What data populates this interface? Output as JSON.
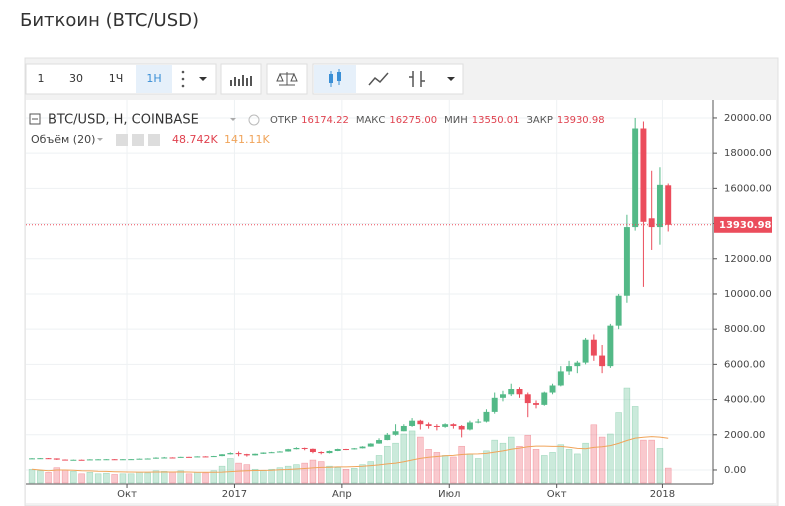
{
  "page_title": "Биткоин (BTC/USD)",
  "toolbar": {
    "buttons": [
      "1",
      "30",
      "1Ч",
      "1Н"
    ]
  },
  "chart_data": {
    "type": "candlestick",
    "title": "BTC/USD, H, COINBASE",
    "ohlc_names": [
      "ОТКР",
      "МАКС",
      "МИН",
      "ЗАКР"
    ],
    "ohlc_labels": [
      "16174.22",
      "16275.00",
      "13550.01",
      "13930.98"
    ],
    "up_color": "#53b987",
    "down_color": "#eb4d5c",
    "xlim": [
      -0.73,
      82.3
    ],
    "xticks": [
      {
        "value": 11.5,
        "label": "Окт"
      },
      {
        "value": 24.5,
        "label": "2017"
      },
      {
        "value": 37.5,
        "label": "Апр"
      },
      {
        "value": 50.5,
        "label": "Июл"
      },
      {
        "value": 63.5,
        "label": "Окт"
      },
      {
        "value": 76.3,
        "label": "2018"
      }
    ],
    "ylim": [
      -740,
      21020
    ],
    "yticks": [
      {
        "value": 0,
        "label": "0.00"
      },
      {
        "value": 2000,
        "label": "2000.00"
      },
      {
        "value": 4000,
        "label": "4000.00"
      },
      {
        "value": 6000,
        "label": "6000.00"
      },
      {
        "value": 8000,
        "label": "8000.00"
      },
      {
        "value": 10000,
        "label": "10000.00"
      },
      {
        "value": 12000,
        "label": "12000.00"
      },
      {
        "value": 14000,
        "label": "14000.00"
      },
      {
        "value": 16000,
        "label": "16000.00"
      },
      {
        "value": 18000,
        "label": "18000.00"
      },
      {
        "value": 20000,
        "label": "20000.00"
      }
    ],
    "grid": true,
    "open": [
      650,
      660,
      670,
      655,
      590,
      575,
      580,
      575,
      600,
      605,
      610,
      605,
      610,
      615,
      640,
      650,
      700,
      710,
      705,
      745,
      735,
      770,
      765,
      790,
      890,
      960,
      900,
      830,
      920,
      990,
      1010,
      1050,
      1180,
      1250,
      1200,
      1020,
      960,
      1080,
      1190,
      1170,
      1230,
      1330,
      1500,
      1700,
      2000,
      2200,
      2500,
      2800,
      2600,
      2500,
      2450,
      2600,
      2500,
      2300,
      2700,
      2750,
      3300,
      4100,
      4300,
      4600,
      4300,
      3800,
      3700,
      4400,
      4800,
      5600,
      5900,
      6100,
      7400,
      6500,
      5900,
      8200,
      9900,
      13800,
      19400,
      14300,
      13800,
      16174.22
    ],
    "high": [
      675,
      680,
      680,
      660,
      600,
      590,
      590,
      610,
      615,
      620,
      615,
      620,
      625,
      650,
      660,
      720,
      740,
      720,
      750,
      750,
      780,
      780,
      800,
      900,
      1000,
      1050,
      920,
      930,
      1000,
      1030,
      1070,
      1200,
      1290,
      1270,
      1220,
      1060,
      1100,
      1210,
      1200,
      1250,
      1350,
      1520,
      1800,
      2100,
      2600,
      2600,
      2950,
      2850,
      2700,
      2600,
      2650,
      2650,
      2550,
      2800,
      2900,
      3450,
      4400,
      4500,
      4900,
      4700,
      4400,
      3950,
      4450,
      4900,
      5900,
      6200,
      6200,
      7500,
      7700,
      7100,
      8300,
      10000,
      14500,
      20000,
      19800,
      17000,
      17200,
      16275
    ],
    "low": [
      640,
      645,
      640,
      570,
      560,
      565,
      560,
      570,
      595,
      600,
      595,
      600,
      605,
      610,
      630,
      640,
      690,
      690,
      700,
      720,
      730,
      750,
      760,
      780,
      880,
      780,
      760,
      820,
      910,
      980,
      1000,
      1040,
      1170,
      1120,
      950,
      890,
      940,
      1070,
      1130,
      1160,
      1220,
      1320,
      1490,
      1690,
      1950,
      2200,
      2450,
      2300,
      2350,
      2250,
      2400,
      2350,
      1850,
      2250,
      2650,
      2700,
      3200,
      3900,
      4200,
      4100,
      3000,
      3500,
      3650,
      4300,
      4750,
      5400,
      5500,
      6000,
      6200,
      5500,
      5800,
      8000,
      9500,
      13600,
      10400,
      12500,
      12800,
      13550.01
    ],
    "close": [
      660,
      670,
      655,
      590,
      575,
      580,
      575,
      600,
      605,
      610,
      605,
      610,
      615,
      640,
      650,
      700,
      710,
      705,
      745,
      735,
      770,
      765,
      790,
      890,
      960,
      900,
      830,
      920,
      990,
      1010,
      1050,
      1180,
      1250,
      1200,
      1020,
      960,
      1080,
      1190,
      1170,
      1230,
      1330,
      1500,
      1700,
      2000,
      2200,
      2500,
      2800,
      2600,
      2500,
      2450,
      2600,
      2500,
      2300,
      2700,
      2750,
      3300,
      4100,
      4300,
      4600,
      4300,
      3800,
      3700,
      4400,
      4800,
      5600,
      5900,
      6100,
      7400,
      6500,
      5900,
      8200,
      9900,
      13800,
      19400,
      14100,
      13800,
      16200,
      13930.98
    ],
    "volume": {
      "name": "Объём (20)",
      "value_label": "48.742K",
      "ma_label": "141.11K",
      "ma_color": "#f0a45a",
      "vlim": [
        0,
        1250
      ],
      "values": [
        45,
        40,
        35,
        50,
        42,
        38,
        30,
        35,
        30,
        32,
        28,
        30,
        30,
        35,
        33,
        40,
        38,
        35,
        40,
        30,
        35,
        33,
        40,
        55,
        80,
        65,
        60,
        45,
        40,
        45,
        50,
        55,
        60,
        65,
        75,
        70,
        55,
        50,
        45,
        48,
        60,
        70,
        90,
        120,
        130,
        160,
        170,
        150,
        110,
        100,
        90,
        85,
        120,
        95,
        80,
        105,
        140,
        130,
        150,
        120,
        156,
        110,
        90,
        100,
        125,
        110,
        95,
        130,
        190,
        150,
        160,
        230,
        310,
        250,
        140,
        140,
        113,
        48.742
      ]
    }
  }
}
